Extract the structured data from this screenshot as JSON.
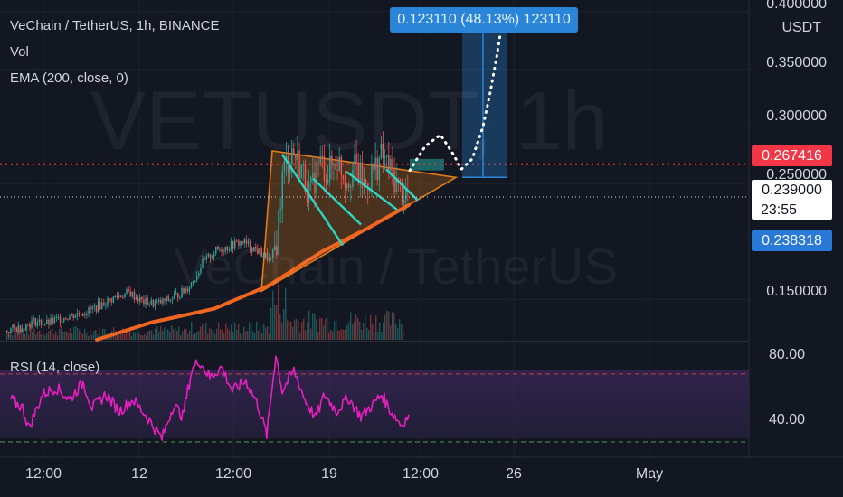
{
  "legend": {
    "symbol_title": "VeChain / TetherUS, 1h, BINANCE",
    "volume_label": "Vol",
    "ema_label": "EMA (200, close, 0)",
    "rsi_label": "RSI (14, close)"
  },
  "watermark": {
    "ticker": "VETUSDT, 1h",
    "name": "VeChain / TetherUS"
  },
  "price_axis": {
    "currency": "USDT",
    "ticks": [
      "0.400000",
      "0.350000",
      "0.300000",
      "0.250000",
      "0.150000"
    ],
    "ticks_values": [
      0.4,
      0.35,
      0.3,
      0.25,
      0.15
    ]
  },
  "price_tags": {
    "resistance": "0.267416",
    "last_price": "0.239000",
    "countdown": "23:55",
    "ema_value": "0.238318"
  },
  "rsi_axis": {
    "ticks": [
      "80.00",
      "40.00"
    ]
  },
  "time_axis": [
    "12:00",
    "12",
    "12:00",
    "19",
    "12:00",
    "26",
    "May"
  ],
  "measure_label": "0.123110 (48.13%) 123110",
  "colors": {
    "background": "#131722",
    "up": "#26a69a",
    "down": "#ef5350",
    "ema": "#f0651f",
    "rsi": "#e91ec0",
    "triangle": "#e07b1a",
    "trendline": "#2ad6c5",
    "resistance": "#f23645",
    "measure": "#2a85d8"
  },
  "chart_data": {
    "type": "candlestick",
    "symbol": "VETUSDT",
    "timeframe": "1h",
    "exchange": "BINANCE",
    "ylim": [
      0.115,
      0.41
    ],
    "last_price": 0.239,
    "resistance_level": 0.267416,
    "ema200_last": 0.238318,
    "projection_target": 0.3905,
    "measured_move": "0.123110 (48.13%) 123110",
    "price_path": [
      [
        0,
        0.123
      ],
      [
        15,
        0.126
      ],
      [
        30,
        0.131
      ],
      [
        45,
        0.129
      ],
      [
        60,
        0.134
      ],
      [
        75,
        0.137
      ],
      [
        90,
        0.14
      ],
      [
        105,
        0.146
      ],
      [
        120,
        0.152
      ],
      [
        135,
        0.156
      ],
      [
        150,
        0.148
      ],
      [
        165,
        0.146
      ],
      [
        180,
        0.15
      ],
      [
        195,
        0.157
      ],
      [
        205,
        0.165
      ],
      [
        215,
        0.18
      ],
      [
        230,
        0.192
      ],
      [
        245,
        0.196
      ],
      [
        260,
        0.2
      ],
      [
        272,
        0.195
      ],
      [
        285,
        0.188
      ],
      [
        292,
        0.183
      ],
      [
        298,
        0.2
      ],
      [
        305,
        0.26
      ],
      [
        315,
        0.28
      ],
      [
        325,
        0.265
      ],
      [
        335,
        0.24
      ],
      [
        345,
        0.27
      ],
      [
        355,
        0.26
      ],
      [
        365,
        0.272
      ],
      [
        375,
        0.255
      ],
      [
        385,
        0.265
      ],
      [
        395,
        0.248
      ],
      [
        405,
        0.262
      ],
      [
        415,
        0.275
      ],
      [
        425,
        0.26
      ],
      [
        435,
        0.245
      ],
      [
        445,
        0.24
      ],
      [
        450,
        0.239
      ]
    ],
    "ema200": [
      [
        100,
        0.115
      ],
      [
        160,
        0.13
      ],
      [
        230,
        0.142
      ],
      [
        290,
        0.162
      ],
      [
        350,
        0.192
      ],
      [
        400,
        0.212
      ],
      [
        445,
        0.232
      ]
    ],
    "rsi": {
      "levels": [
        70,
        30
      ],
      "ylim": [
        22,
        88
      ],
      "values": [
        [
          5,
          55
        ],
        [
          18,
          50
        ],
        [
          25,
          38
        ],
        [
          40,
          58
        ],
        [
          55,
          62
        ],
        [
          70,
          55
        ],
        [
          85,
          65
        ],
        [
          95,
          50
        ],
        [
          110,
          58
        ],
        [
          125,
          48
        ],
        [
          140,
          55
        ],
        [
          155,
          45
        ],
        [
          172,
          32
        ],
        [
          185,
          52
        ],
        [
          195,
          45
        ],
        [
          205,
          72
        ],
        [
          213,
          78
        ],
        [
          225,
          68
        ],
        [
          238,
          74
        ],
        [
          250,
          60
        ],
        [
          265,
          66
        ],
        [
          278,
          52
        ],
        [
          288,
          34
        ],
        [
          298,
          82
        ],
        [
          305,
          60
        ],
        [
          318,
          72
        ],
        [
          330,
          55
        ],
        [
          342,
          44
        ],
        [
          352,
          58
        ],
        [
          365,
          48
        ],
        [
          378,
          56
        ],
        [
          392,
          45
        ],
        [
          405,
          52
        ],
        [
          415,
          58
        ],
        [
          425,
          48
        ],
        [
          437,
          40
        ],
        [
          445,
          46
        ]
      ]
    }
  }
}
